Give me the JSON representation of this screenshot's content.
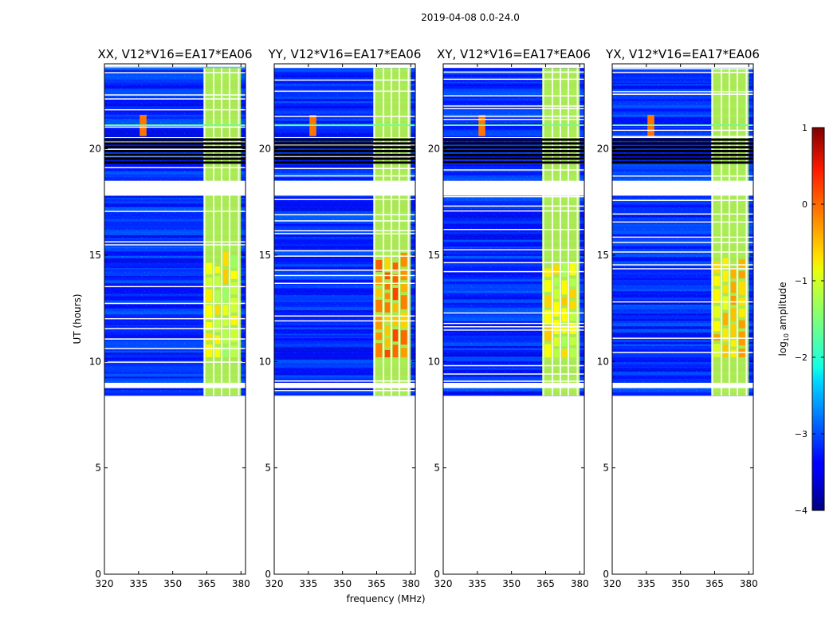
{
  "suptitle": "2019-04-08 0.0-24.0",
  "chart_data": {
    "type": "heatmap",
    "suptitle": "2019-04-08 0.0-24.0",
    "xlabel": "frequency (MHz)",
    "ylabel": "UT (hours)",
    "xlim": [
      320,
      382
    ],
    "ylim": [
      0,
      24
    ],
    "xticks": [
      "320",
      "335",
      "350",
      "365",
      "380"
    ],
    "yticks": [
      "0",
      "5",
      "10",
      "15",
      "20"
    ],
    "colorbar": {
      "label": "log10 amplitude",
      "label_base": "log",
      "label_sub": "10",
      "label_rest": " amplitude",
      "range": [
        -4,
        1
      ],
      "ticks": [
        "1",
        "0",
        "−1",
        "−2",
        "−3",
        "−4"
      ],
      "colormap": "jet"
    },
    "panels": [
      {
        "title": "XX, V12*V16=EA17*EA06",
        "pol": "XX",
        "peak_amplitude": -0.2
      },
      {
        "title": "YY, V12*V16=EA17*EA06",
        "pol": "YY",
        "peak_amplitude": 0.5
      },
      {
        "title": "XY, V12*V16=EA17*EA06",
        "pol": "XY",
        "peak_amplitude": -0.2
      },
      {
        "title": "YX, V12*V16=EA17*EA06",
        "pol": "YX",
        "peak_amplitude": 0.1
      }
    ],
    "data_start_ut": 8.4,
    "data_end_ut": 23.8,
    "flagged_ut_ranges": [
      [
        19.3,
        20.5
      ],
      [
        18.5,
        19.3
      ]
    ],
    "rfi_band_mhz": [
      363.5,
      380
    ],
    "rfi_channels_mhz": [
      364,
      368,
      371.5,
      375,
      379
    ],
    "strong_rfi_ut_range": [
      10.2,
      14.5
    ],
    "narrowband_rfi_mhz": 337,
    "narrowband_rfi_ut_range": [
      20.6,
      21.6
    ]
  }
}
